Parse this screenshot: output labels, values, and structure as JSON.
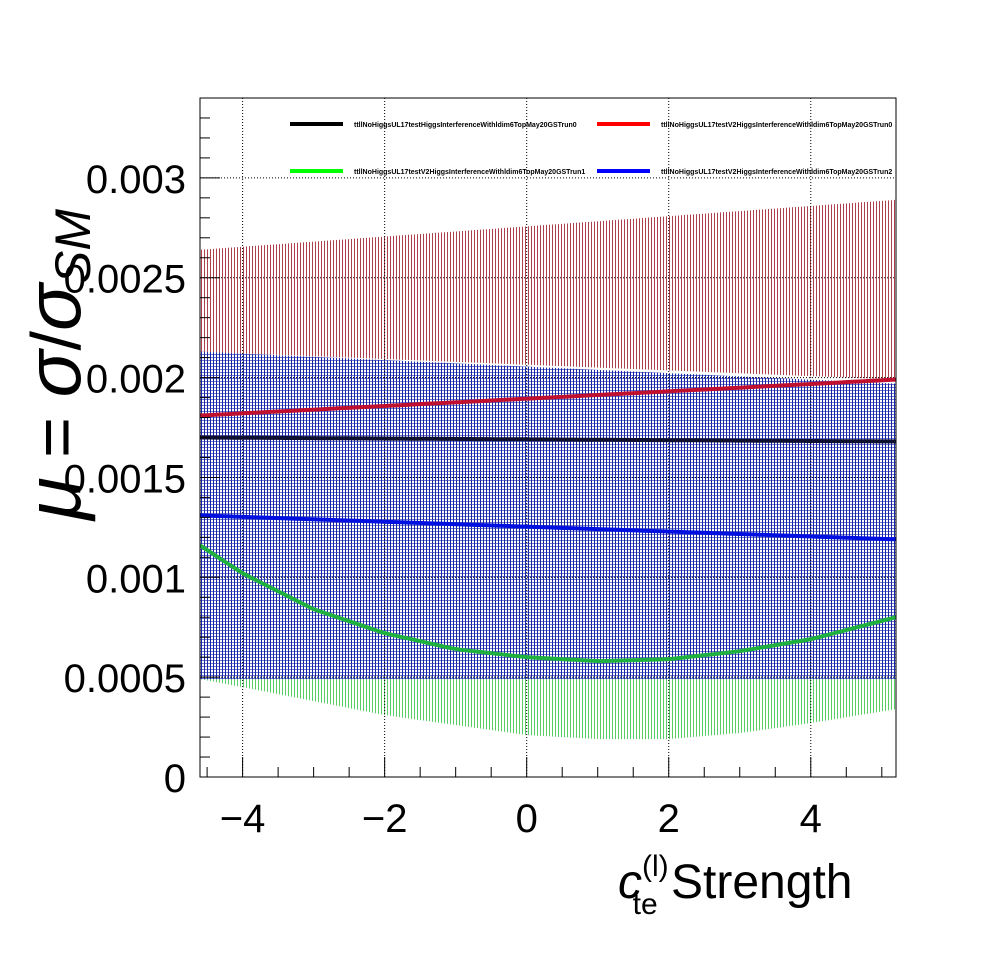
{
  "chart_data": {
    "type": "line",
    "xlabel": {
      "symbol": "c",
      "superscript": "(l)",
      "subscript": "te",
      "suffix": " Strength"
    },
    "ylabel": {
      "mu": "μ",
      "equals": " = ",
      "sigma": "σ",
      "slash": "/",
      "sigma_sm": "σ",
      "sm": "SM"
    },
    "xlim": [
      -4.6,
      5.2
    ],
    "ylim": [
      0,
      0.0034
    ],
    "x_ticks": [
      -4,
      -2,
      0,
      2,
      4
    ],
    "x_tick_labels": [
      "−4",
      "−2",
      "0",
      "2",
      "4"
    ],
    "y_ticks": [
      0,
      0.0005,
      0.001,
      0.0015,
      0.002,
      0.0025,
      0.003
    ],
    "y_tick_labels": [
      "0",
      "0.0005",
      "0.001",
      "0.0015",
      "0.002",
      "0.0025",
      "0.003"
    ],
    "grid": true,
    "legend_placement": "top",
    "series": [
      {
        "name": "ttllNoHiggsUL17testHiggsInterferenceWithldim6TopMay20GSTrun0",
        "color": "#000000",
        "band_color": "#001070",
        "x": [
          -4.6,
          5.2
        ],
        "values": [
          0.0017,
          0.00168
        ],
        "band_low": [
          0.00049,
          0.00049
        ],
        "band_high": [
          0.00213,
          0.00197
        ]
      },
      {
        "name": "ttllNoHiggsUL17testV2HiggsInterferenceWithldim6TopMay20GSTrun0",
        "color": "#ff0000",
        "band_color": "#9a1020",
        "x": [
          -4.6,
          5.2
        ],
        "values": [
          0.00181,
          0.00199
        ],
        "band_low": [
          0.00213,
          0.00199
        ],
        "band_high": [
          0.00264,
          0.00289
        ]
      },
      {
        "name": "ttllNoHiggsUL17testV2HiggsInterferenceWithldim6TopMay20GSTrun1",
        "color": "#00ff00",
        "band_color": "#30c040",
        "x": [
          -4.6,
          -4.0,
          -3.0,
          -2.0,
          -1.0,
          0.0,
          1.0,
          2.0,
          3.0,
          4.0,
          5.2
        ],
        "values": [
          0.00116,
          0.00102,
          0.00084,
          0.00072,
          0.00064,
          0.0006,
          0.00058,
          0.00059,
          0.00063,
          0.00069,
          0.0008
        ],
        "band_low": [
          0.00049,
          0.00045,
          0.00038,
          0.00031,
          0.00026,
          0.00021,
          0.00019,
          0.00019,
          0.00022,
          0.00027,
          0.00034
        ],
        "band_high": [
          0.00049,
          0.00049,
          0.00049,
          0.00049,
          0.00049,
          0.00049,
          0.00049,
          0.00049,
          0.00049,
          0.00049,
          0.00049
        ]
      },
      {
        "name": "ttllNoHiggsUL17testV2HiggsInterferenceWithldim6TopMay20GSTrun2",
        "color": "#0000ff",
        "band_color": "#0010a0",
        "x": [
          -4.6,
          5.2
        ],
        "values": [
          0.00131,
          0.00119
        ],
        "band_low": [
          0.00049,
          0.00049
        ],
        "band_high": [
          0.00213,
          0.00197
        ]
      }
    ]
  }
}
